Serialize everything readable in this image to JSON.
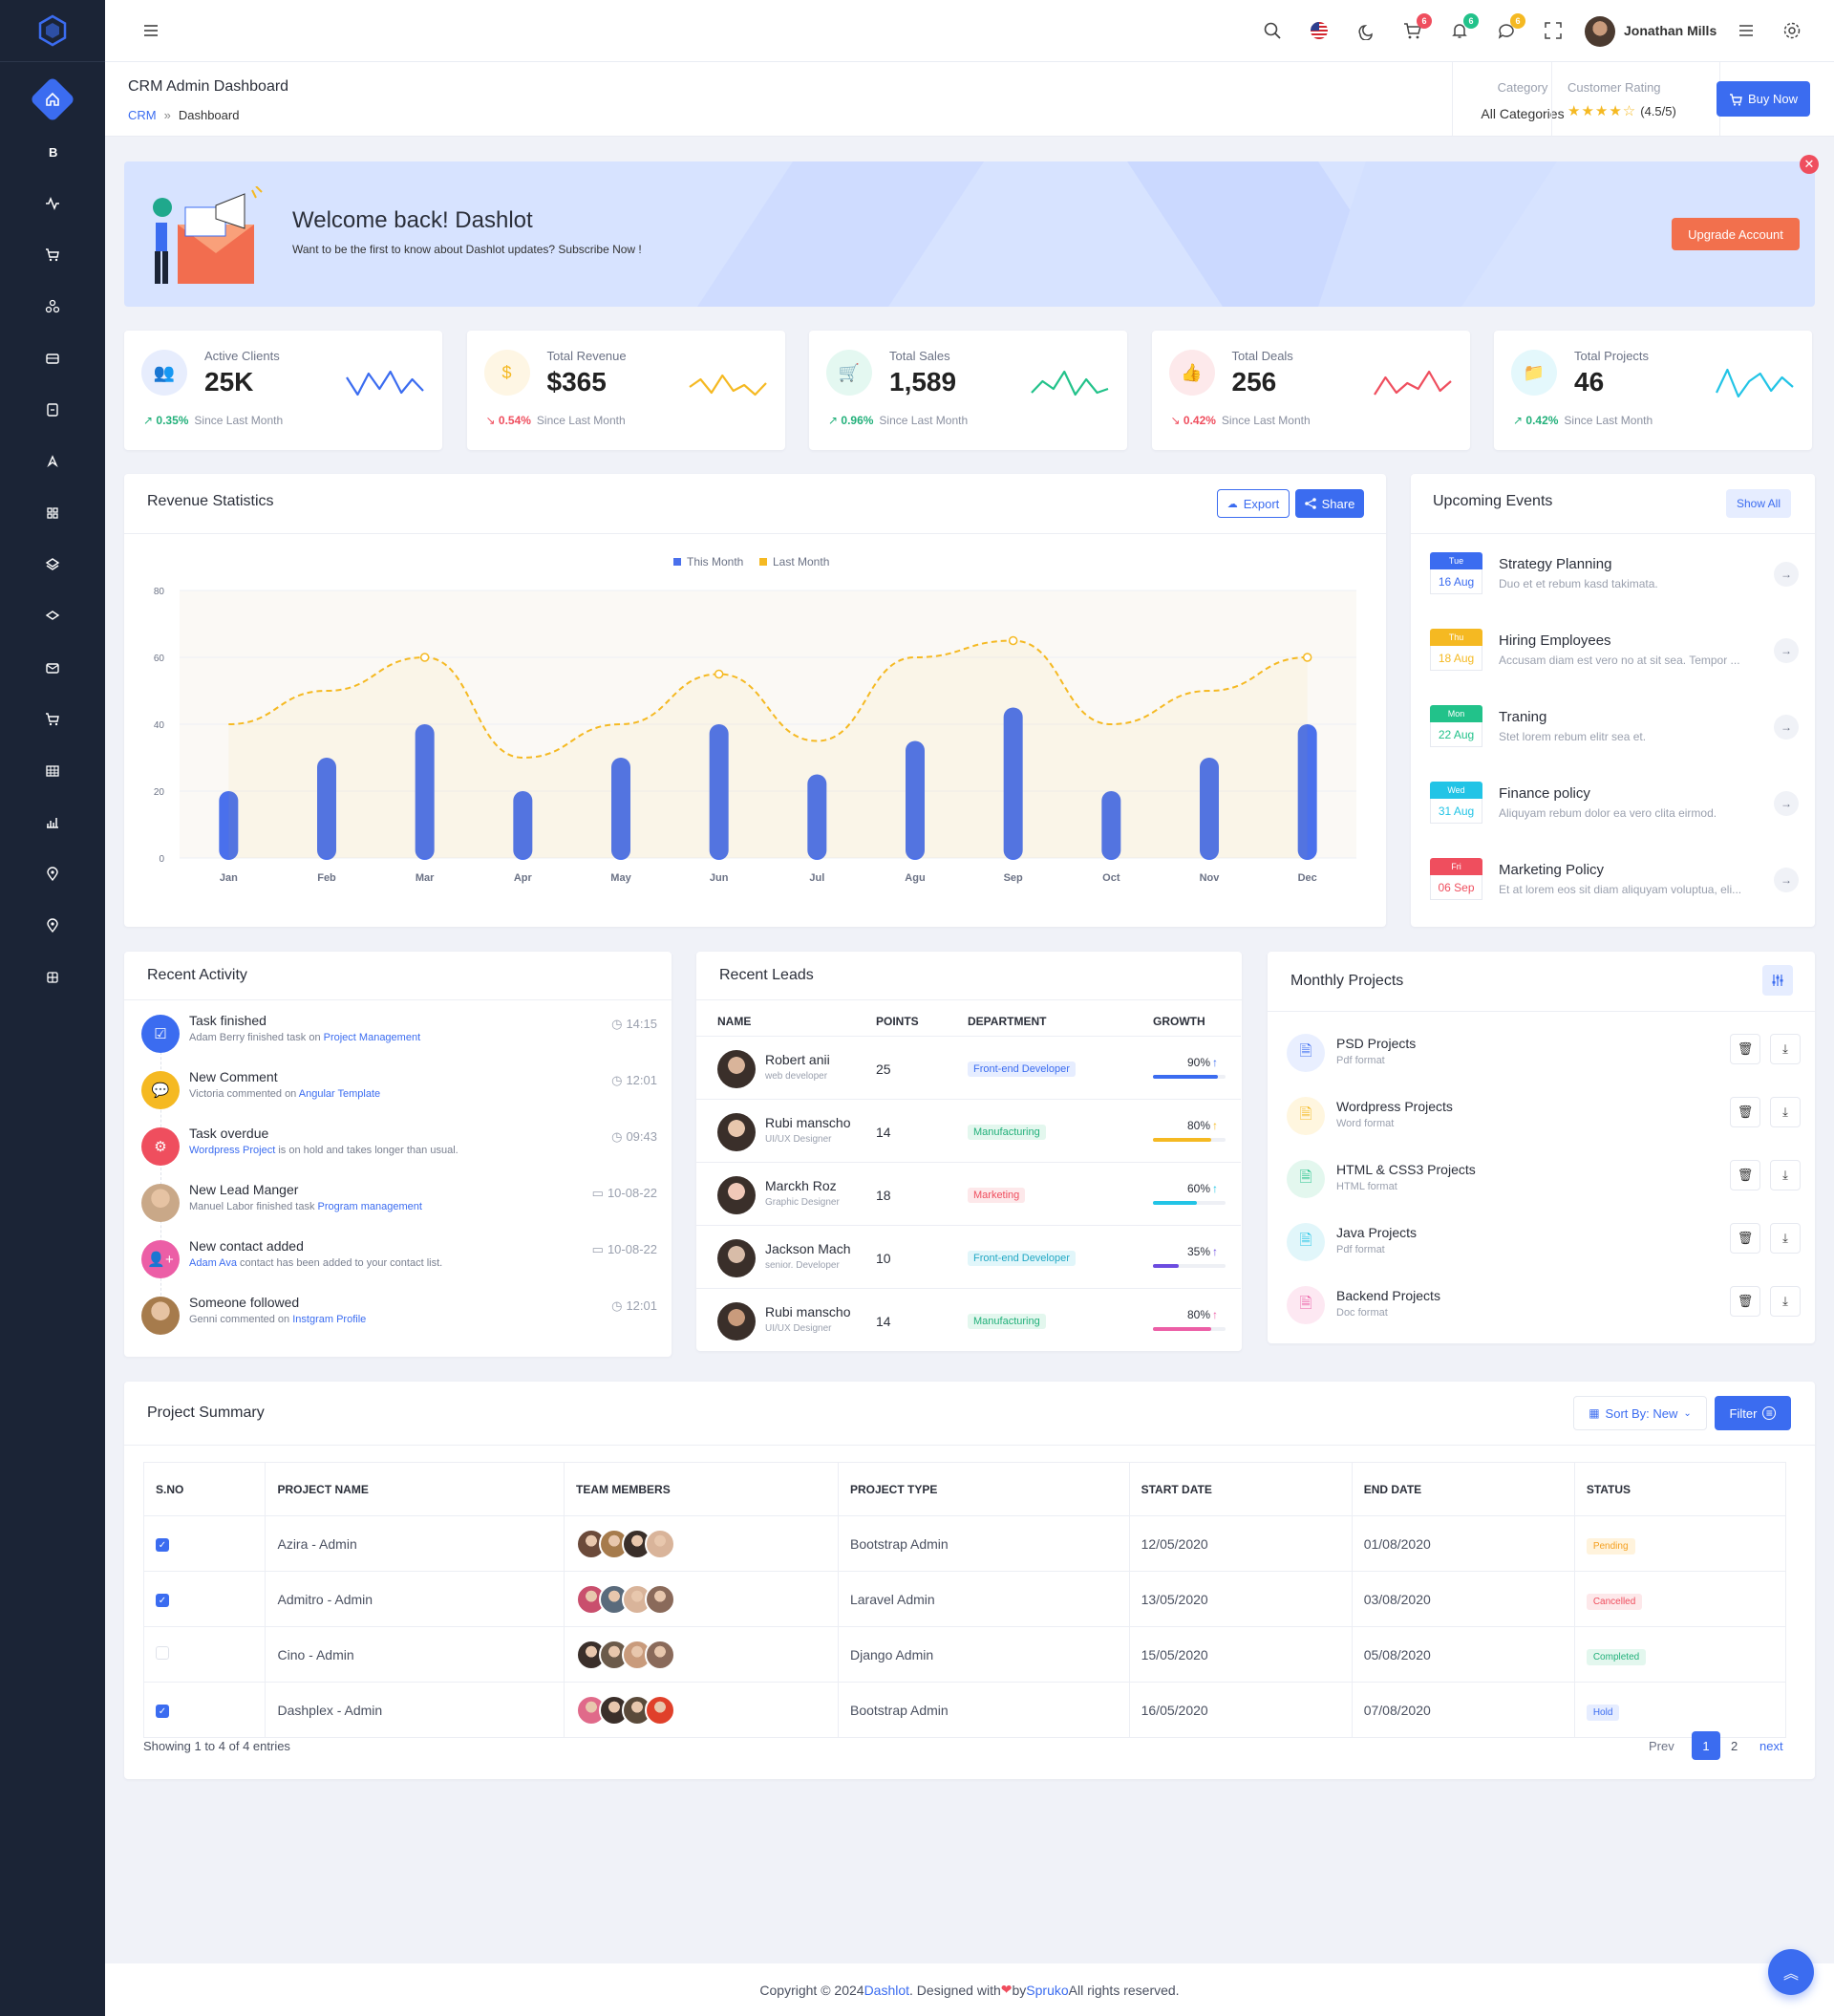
{
  "header": {
    "user_name": "Jonathan Mills",
    "cart_count": "6",
    "notif_count": "6",
    "msg_count": "6"
  },
  "subheader": {
    "page_title": "CRM Admin Dashboard",
    "crumb_root": "CRM",
    "crumb_current": "Dashboard",
    "category_label": "Category",
    "category_value": "All Categories",
    "rating_label": "Customer Rating",
    "rating_value": "(4.5/5)",
    "buy_label": "Buy Now"
  },
  "welcome": {
    "title": "Welcome back! Dashlot",
    "subtitle": "Want to be the first to know about Dashlot updates? Subscribe Now !",
    "button": "Upgrade Account"
  },
  "stats": [
    {
      "label": "Active Clients",
      "value": "25K",
      "change": "0.35%",
      "since": "Since Last Month",
      "trend": "up",
      "color": "#3b6cf0"
    },
    {
      "label": "Total Revenue",
      "value": "$365",
      "change": "0.54%",
      "since": "Since Last Month",
      "trend": "down",
      "color": "#f5b922"
    },
    {
      "label": "Total Sales",
      "value": "1,589",
      "change": "0.96%",
      "since": "Since Last Month",
      "trend": "up",
      "color": "#22c28a"
    },
    {
      "label": "Total Deals",
      "value": "256",
      "change": "0.42%",
      "since": "Since Last Month",
      "trend": "down",
      "color": "#ef4e5e"
    },
    {
      "label": "Total Projects",
      "value": "46",
      "change": "0.42%",
      "since": "Since Last Month",
      "trend": "up",
      "color": "#22c4e6"
    }
  ],
  "revenue": {
    "title": "Revenue Statistics",
    "export": "Export",
    "share": "Share"
  },
  "chart_data": {
    "type": "bar",
    "categories": [
      "Jan",
      "Feb",
      "Mar",
      "Apr",
      "May",
      "Jun",
      "Jul",
      "Agu",
      "Sep",
      "Oct",
      "Nov",
      "Dec"
    ],
    "series": [
      {
        "name": "This Month",
        "type": "bar",
        "color": "#4a70ec",
        "values": [
          20,
          30,
          40,
          20,
          30,
          40,
          25,
          35,
          45,
          20,
          30,
          40
        ]
      },
      {
        "name": "Last Month",
        "type": "line",
        "color": "#f5b922",
        "values": [
          40,
          50,
          60,
          30,
          40,
          55,
          35,
          60,
          65,
          40,
          50,
          60
        ]
      }
    ],
    "ylim": [
      0,
      80
    ],
    "yticks": [
      0,
      20,
      40,
      60,
      80
    ],
    "legend": "top-center"
  },
  "events": {
    "title": "Upcoming Events",
    "show_all": "Show All",
    "items": [
      {
        "day": "Tue",
        "date": "16 Aug",
        "title": "Strategy Planning",
        "desc": "Duo et et rebum kasd takimata.",
        "color": "#3b6cf0"
      },
      {
        "day": "Thu",
        "date": "18 Aug",
        "title": "Hiring Employees",
        "desc": "Accusam diam est vero no at sit sea. Tempor ...",
        "color": "#f5b922"
      },
      {
        "day": "Mon",
        "date": "22 Aug",
        "title": "Traning",
        "desc": "Stet lorem rebum elitr sea et.",
        "color": "#22c28a"
      },
      {
        "day": "Wed",
        "date": "31 Aug",
        "title": "Finance policy",
        "desc": "Aliquyam rebum dolor ea vero clita eirmod.",
        "color": "#22c4e6"
      },
      {
        "day": "Fri",
        "date": "06 Sep",
        "title": "Marketing Policy",
        "desc": "Et at lorem eos sit diam aliquyam voluptua, eli...",
        "color": "#ef4e5e"
      }
    ]
  },
  "activity": {
    "title": "Recent Activity",
    "items": [
      {
        "title": "Task finished",
        "pre": "Adam Berry finished task on ",
        "link": "Project Management",
        "post": "",
        "time": "14:15",
        "color": "#3b6cf0"
      },
      {
        "title": "New Comment",
        "pre": "Victoria commented on ",
        "link": "Angular Template",
        "post": "",
        "time": "12:01",
        "color": "#f5b922"
      },
      {
        "title": "Task overdue",
        "pre": "",
        "link": "Wordpress Project",
        "post": " is on hold and takes longer than usual.",
        "time": "09:43",
        "color": "#ef4e5e"
      },
      {
        "title": "New Lead Manger",
        "pre": "Manuel Labor finished task ",
        "link": "Program management",
        "post": "",
        "time": "10-08-22",
        "color": "#c9a888"
      },
      {
        "title": "New contact added",
        "pre": "",
        "link": "Adam Ava",
        "post": " contact has been added to your contact list.",
        "time": "10-08-22",
        "color": "#ec5ea6"
      },
      {
        "title": "Someone followed",
        "pre": "Genni commented on ",
        "link": "Instgram Profile",
        "post": "",
        "time": "12:01",
        "color": "#a67b4c"
      }
    ]
  },
  "leads": {
    "title": "Recent Leads",
    "cols": [
      "NAME",
      "POINTS",
      "DEPARTMENT",
      "GROWTH"
    ],
    "rows": [
      {
        "name": "Robert anii",
        "role": "web developer",
        "points": "25",
        "dept": "Front-end Developer",
        "dept_color": "#3b6cf0",
        "dept_bg": "#e6edff",
        "growth": "90%",
        "pct": 0.9,
        "bar": "#3b6cf0"
      },
      {
        "name": "Rubi manscho",
        "role": "UI/UX Designer",
        "points": "14",
        "dept": "Manufacturing",
        "dept_color": "#22b07a",
        "dept_bg": "#e3f7ee",
        "growth": "80%",
        "pct": 0.8,
        "bar": "#f5b922"
      },
      {
        "name": "Marckh Roz",
        "role": "Graphic Designer",
        "points": "18",
        "dept": "Marketing",
        "dept_color": "#ef4e5e",
        "dept_bg": "#fde8ea",
        "growth": "60%",
        "pct": 0.6,
        "bar": "#22c4e6"
      },
      {
        "name": "Jackson Mach",
        "role": "senior. Developer",
        "points": "10",
        "dept": "Front-end Developer",
        "dept_color": "#22a8c4",
        "dept_bg": "#e1f6fa",
        "growth": "35%",
        "pct": 0.35,
        "bar": "#6c4ce0"
      },
      {
        "name": "Rubi manscho",
        "role": "UI/UX Designer",
        "points": "14",
        "dept": "Manufacturing",
        "dept_color": "#22b07a",
        "dept_bg": "#e3f7ee",
        "growth": "80%",
        "pct": 0.8,
        "bar": "#ec5ea6"
      }
    ]
  },
  "projects": {
    "title": "Monthly Projects",
    "items": [
      {
        "name": "PSD Projects",
        "fmt": "Pdf format",
        "color": "#3b6cf0",
        "bg": "#e9efff"
      },
      {
        "name": "Wordpress Projects",
        "fmt": "Word format",
        "color": "#f5b922",
        "bg": "#fff6df"
      },
      {
        "name": "HTML & CSS3 Projects",
        "fmt": "HTML format",
        "color": "#22c28a",
        "bg": "#e3f7ee"
      },
      {
        "name": "Java Projects",
        "fmt": "Pdf format",
        "color": "#22c4e6",
        "bg": "#e1f6fa"
      },
      {
        "name": "Backend Projects",
        "fmt": "Doc format",
        "color": "#ec5ea6",
        "bg": "#fde8f2"
      }
    ]
  },
  "summary": {
    "title": "Project Summary",
    "sort": "Sort By: New",
    "filter": "Filter",
    "cols": [
      "S.NO",
      "PROJECT NAME",
      "TEAM MEMBERS",
      "PROJECT TYPE",
      "START DATE",
      "END DATE",
      "STATUS"
    ],
    "rows": [
      {
        "checked": true,
        "name": "Azira - Admin",
        "type": "Bootstrap Admin",
        "start": "12/05/2020",
        "end": "01/08/2020",
        "status": "Pending",
        "s_color": "#f5a020",
        "s_bg": "#fff3dc"
      },
      {
        "checked": true,
        "name": "Admitro - Admin",
        "type": "Laravel Admin",
        "start": "13/05/2020",
        "end": "03/08/2020",
        "status": "Cancelled",
        "s_color": "#ef4e5e",
        "s_bg": "#fde8ea"
      },
      {
        "checked": false,
        "name": "Cino - Admin",
        "type": "Django Admin",
        "start": "15/05/2020",
        "end": "05/08/2020",
        "status": "Completed",
        "s_color": "#22b07a",
        "s_bg": "#e3f7ee"
      },
      {
        "checked": true,
        "name": "Dashplex - Admin",
        "type": "Bootstrap Admin",
        "start": "16/05/2020",
        "end": "07/08/2020",
        "status": "Hold",
        "s_color": "#3b6cf0",
        "s_bg": "#e6edff"
      }
    ],
    "showing": "Showing 1 to 4 of 4 entries",
    "prev": "Prev",
    "page1": "1",
    "page2": "2",
    "next": "next"
  },
  "footer": {
    "pre": "Copyright © 2024 ",
    "brand": "Dashlot",
    "mid": ". Designed with ",
    "heart": "❤",
    "by": " by ",
    "author": "Spruko",
    "post": " All rights reserved."
  }
}
